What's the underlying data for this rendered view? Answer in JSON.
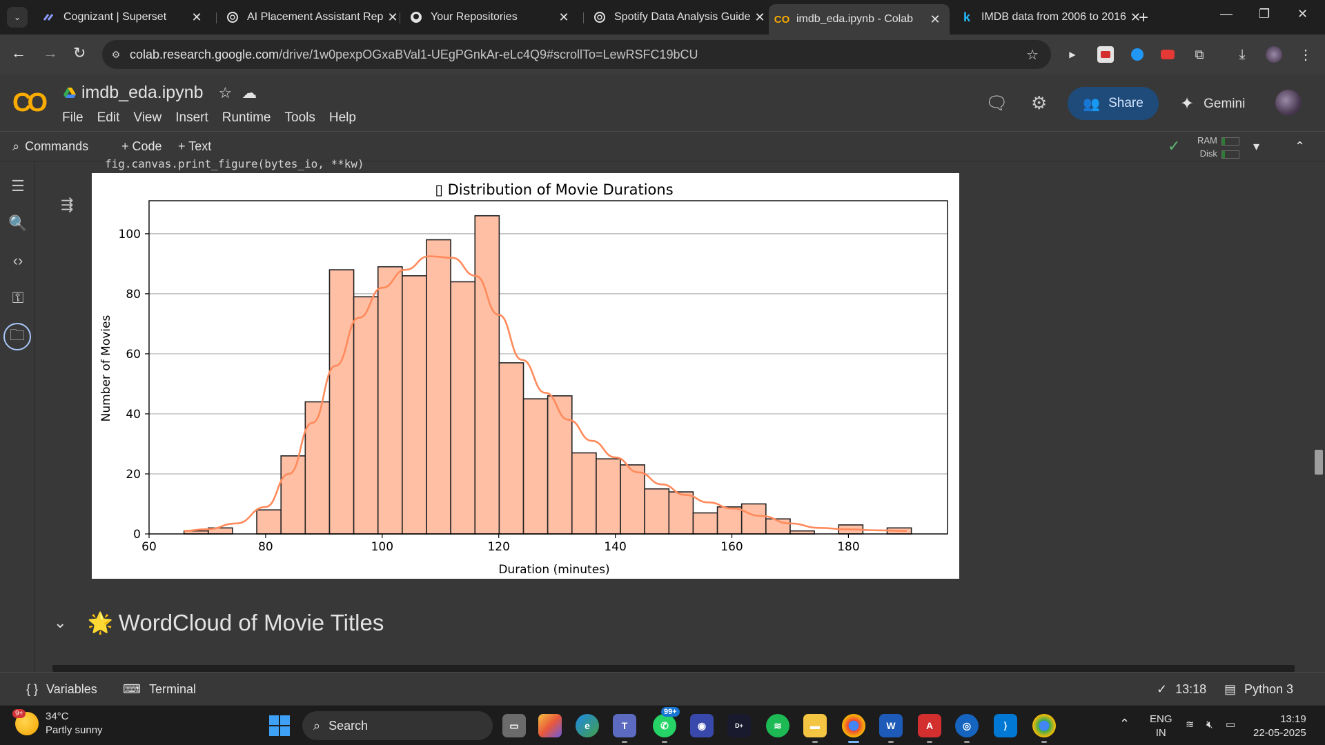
{
  "browser": {
    "tabs": [
      {
        "title": "Cognizant | Superset",
        "icon": "superset-icon",
        "active": false
      },
      {
        "title": "AI Placement Assistant Rep",
        "icon": "openai-icon",
        "active": false
      },
      {
        "title": "Your Repositories",
        "icon": "github-icon",
        "active": false
      },
      {
        "title": "Spotify Data Analysis Guide",
        "icon": "openai-icon",
        "active": false
      },
      {
        "title": "imdb_eda.ipynb - Colab",
        "icon": "colab-icon",
        "active": true
      },
      {
        "title": "IMDB data from 2006 to 2016",
        "icon": "kaggle-icon",
        "active": false
      }
    ],
    "url_host": "colab.research.google.com",
    "url_path": "/drive/1w0pexpOGxaBVal1-UEgPGnkAr-eLc4Q9#scrollTo=LewRSFC19bCU"
  },
  "colab": {
    "notebook_title": "imdb_eda.ipynb",
    "menu": [
      "File",
      "Edit",
      "View",
      "Insert",
      "Runtime",
      "Tools",
      "Help"
    ],
    "share_label": "Share",
    "gemini_label": "Gemini",
    "commands_label": "Commands",
    "add_code_label": "+ Code",
    "add_text_label": "+ Text",
    "ram_label": "RAM",
    "disk_label": "Disk"
  },
  "cell": {
    "code_tail": "fig.canvas.print_figure(bytes_io, **kw)",
    "next_section_title": "WordCloud of Movie Titles"
  },
  "chart_data": {
    "type": "bar",
    "title": "▯ Distribution of Movie Durations",
    "xlabel": "Duration (minutes)",
    "ylabel": "Number of Movies",
    "xlim": [
      60,
      197
    ],
    "ylim": [
      0,
      111
    ],
    "x_ticks": [
      60,
      80,
      100,
      120,
      140,
      160,
      180
    ],
    "y_ticks": [
      0,
      20,
      40,
      60,
      80,
      100
    ],
    "grid": "y",
    "bin_width": 4.16,
    "bin_start": 66,
    "values": [
      1,
      2,
      0,
      8,
      26,
      44,
      88,
      79,
      89,
      86,
      98,
      84,
      106,
      57,
      45,
      46,
      27,
      25,
      23,
      15,
      14,
      7,
      9,
      10,
      5,
      1,
      0,
      3,
      0,
      2
    ],
    "kde": {
      "x": [
        66,
        70,
        75,
        80,
        84,
        88,
        92,
        96,
        100,
        104,
        108,
        112,
        116,
        120,
        124,
        128,
        132,
        136,
        140,
        144,
        148,
        152,
        156,
        160,
        165,
        170,
        175,
        180,
        185,
        190
      ],
      "y": [
        1,
        1.6,
        3.5,
        9,
        20,
        37,
        56,
        72,
        82,
        88,
        92.5,
        92,
        86,
        73,
        58,
        47,
        38,
        31,
        25.5,
        20.5,
        16.5,
        13,
        10.5,
        8.5,
        6,
        3.5,
        2,
        1.5,
        1.2,
        1
      ]
    },
    "bar_color": "#ffbfa5",
    "bar_edge": "#222222",
    "kde_color": "#ff8a5b"
  },
  "statusbar": {
    "variables_label": "Variables",
    "terminal_label": "Terminal",
    "exec_time": "13:18",
    "runtime_label": "Python 3"
  },
  "taskbar": {
    "weather_badge": "9+",
    "temperature": "34°C",
    "weather_desc": "Partly sunny",
    "search_label": "Search",
    "whatsapp_badge": "99+",
    "lang_top": "ENG",
    "lang_bottom": "IN",
    "time": "13:19",
    "date": "22-05-2025"
  }
}
